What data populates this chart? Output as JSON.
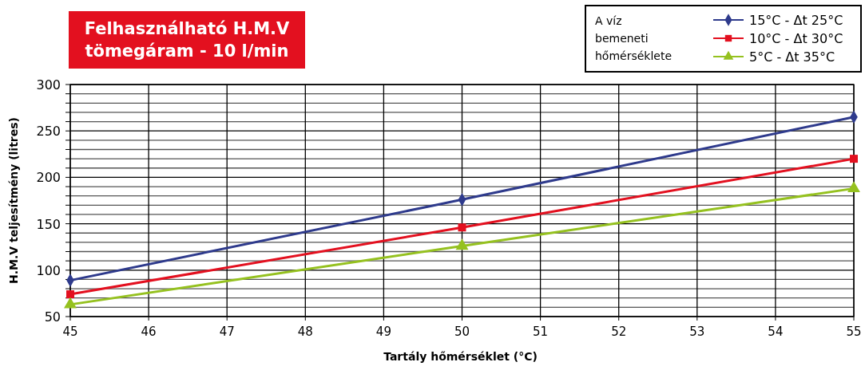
{
  "chart_data": {
    "type": "line",
    "title": "Felhasználható H.M.V\ntömegáram - 10 l/min",
    "xlabel": "Tartály hőmérséklet (°C)",
    "ylabel": "H.M.V teljesítmény (litres)",
    "legend_title": "A víz\nbemeneti\nhőmérséklete",
    "legend": "top right",
    "x": [
      45,
      50,
      55
    ],
    "xlim": [
      45,
      55
    ],
    "xticks": [
      45,
      46,
      47,
      48,
      49,
      50,
      51,
      52,
      53,
      54,
      55
    ],
    "ylim": [
      50,
      300
    ],
    "yticks": [
      50,
      {
        "value": 60,
        "label": null
      },
      {
        "value": 70,
        "label": null
      },
      {
        "value": 80,
        "label": null
      },
      {
        "value": 90,
        "label": null
      },
      100,
      {
        "value": 110,
        "label": null
      },
      {
        "value": 120,
        "label": null
      },
      {
        "value": 130,
        "label": null
      },
      {
        "value": 140,
        "label": null
      },
      150,
      {
        "value": 160,
        "label": null
      },
      {
        "value": 170,
        "label": null
      },
      {
        "value": 180,
        "label": null
      },
      {
        "value": 190,
        "label": null
      },
      200,
      {
        "value": 210,
        "label": null
      },
      {
        "value": 220,
        "label": null
      },
      {
        "value": 230,
        "label": null
      },
      {
        "value": 240,
        "label": null
      },
      250,
      {
        "value": 260,
        "label": null
      },
      {
        "value": 270,
        "label": null
      },
      {
        "value": 280,
        "label": null
      },
      {
        "value": 290,
        "label": null
      },
      300
    ],
    "grid": true,
    "line_style": "solid",
    "series": [
      {
        "name": "15°C - Δt 25°C",
        "color": "#2e3a8c",
        "marker": "diamond",
        "values": [
          89,
          176,
          265
        ]
      },
      {
        "name": "10°C - Δt 30°C",
        "color": "#e3101f",
        "marker": "square",
        "values": [
          74,
          146,
          220
        ]
      },
      {
        "name": "5°C - Δt 35°C",
        "color": "#95c11f",
        "marker": "triangle",
        "values": [
          63,
          126,
          188
        ]
      }
    ]
  }
}
